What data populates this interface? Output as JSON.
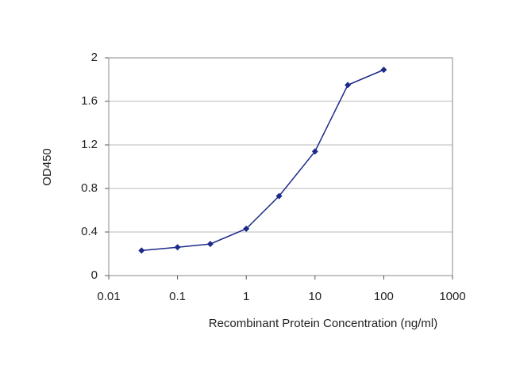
{
  "chart_data": {
    "type": "line",
    "x_label": "Recombinant Protein Concentration (ng/ml)",
    "y_label": "OD450",
    "x": [
      0.03,
      0.1,
      0.3,
      1,
      3,
      10,
      30,
      100
    ],
    "series": [
      {
        "name": "OD450",
        "color": "#1c2a8a",
        "values": [
          0.23,
          0.26,
          0.29,
          0.43,
          0.73,
          1.14,
          1.75,
          1.89
        ]
      }
    ],
    "xscale": "log",
    "xlim": [
      0.01,
      1000
    ],
    "xticks": [
      0.01,
      0.1,
      1,
      10,
      100,
      1000
    ],
    "ylim": [
      0,
      2
    ],
    "yticks": [
      0,
      0.4,
      0.8,
      1.2,
      1.6,
      2
    ],
    "grid": true
  }
}
